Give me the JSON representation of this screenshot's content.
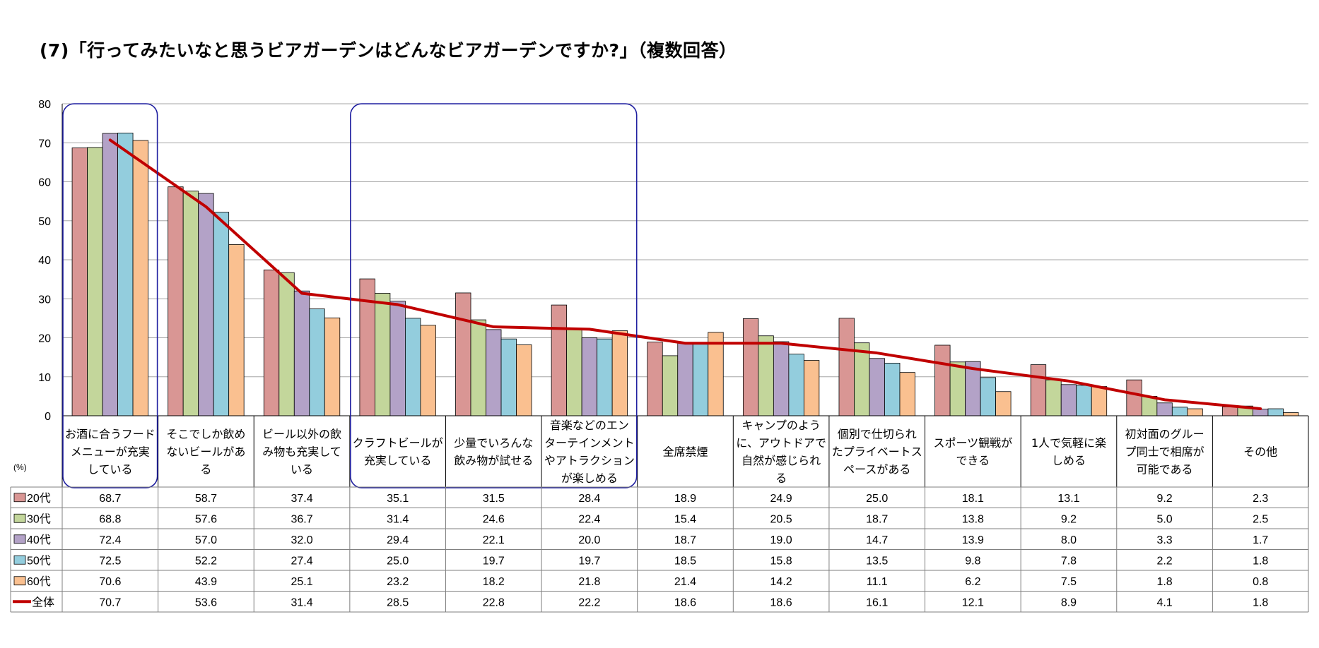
{
  "title": "(7)「行ってみたいなと思うビアガーデンはどんなビアガーデンですか?」（複数回答）",
  "unit_label": "(%)",
  "colors": {
    "20代": "#d99694",
    "30代": "#c3d69b",
    "40代": "#b3a2c7",
    "50代": "#93cddd",
    "60代": "#fac090",
    "全体": "#c00000",
    "highlight_box": "#1f1fa0",
    "grid": "#a6a6a6"
  },
  "chart_data": {
    "type": "bar",
    "title": "(7)「行ってみたいなと思うビアガーデンはどんなビアガーデンですか?」（複数回答）",
    "ylabel": "(%)",
    "ylim": [
      0,
      80
    ],
    "yticks": [
      0,
      10,
      20,
      30,
      40,
      50,
      60,
      70,
      80
    ],
    "grid": true,
    "legend": "table-left",
    "categories": [
      [
        "お酒に合うフード",
        "メニューが充実",
        "している"
      ],
      [
        "そこでしか飲め",
        "ないビールがあ",
        "る"
      ],
      [
        "ビール以外の飲",
        "み物も充実して",
        "いる"
      ],
      [
        "クラフトビールが",
        "充実している"
      ],
      [
        "少量でいろんな",
        "飲み物が試せる"
      ],
      [
        "音楽などのエン",
        "ターテインメント",
        "やアトラクション",
        "が楽しめる"
      ],
      [
        "全席禁煙"
      ],
      [
        "キャンプのよう",
        "に、アウトドアで",
        "自然が感じられ",
        "る"
      ],
      [
        "個別で仕切られ",
        "たプライベートス",
        "ペースがある"
      ],
      [
        "スポーツ観戦が",
        "できる"
      ],
      [
        "1人で気軽に楽",
        "しめる"
      ],
      [
        "初対面のグルー",
        "プ同士で相席が",
        "可能である"
      ],
      [
        "その他"
      ]
    ],
    "series": [
      {
        "name": "20代",
        "type": "bar",
        "values": [
          68.7,
          58.7,
          37.4,
          35.1,
          31.5,
          28.4,
          18.9,
          24.9,
          25.0,
          18.1,
          13.1,
          9.2,
          2.3
        ],
        "labels": [
          "68.7",
          "58.7",
          "37.4",
          "35.1",
          "31.5",
          "28.4",
          "18.9",
          "24.9",
          "25.0",
          "18.1",
          "13.1",
          "9.2",
          "2.3"
        ]
      },
      {
        "name": "30代",
        "type": "bar",
        "values": [
          68.8,
          57.6,
          36.7,
          31.4,
          24.6,
          22.4,
          15.4,
          20.5,
          18.7,
          13.8,
          9.2,
          5.0,
          2.5
        ],
        "labels": [
          "68.8",
          "57.6",
          "36.7",
          "31.4",
          "24.6",
          "22.4",
          "15.4",
          "20.5",
          "18.7",
          "13.8",
          "9.2",
          "5.0",
          "2.5"
        ]
      },
      {
        "name": "40代",
        "type": "bar",
        "values": [
          72.4,
          57.0,
          32.0,
          29.4,
          22.1,
          20.0,
          18.7,
          19.0,
          14.7,
          13.9,
          8.0,
          3.3,
          1.7
        ],
        "labels": [
          "72.4",
          "57.0",
          "32.0",
          "29.4",
          "22.1",
          "20.0",
          "18.7",
          "19.0",
          "14.7",
          "13.9",
          "8.0",
          "3.3",
          "1.7"
        ]
      },
      {
        "name": "50代",
        "type": "bar",
        "values": [
          72.5,
          52.2,
          27.4,
          25.0,
          19.7,
          19.7,
          18.5,
          15.8,
          13.5,
          9.8,
          7.8,
          2.2,
          1.8
        ],
        "labels": [
          "72.5",
          "52.2",
          "27.4",
          "25.0",
          "19.7",
          "19.7",
          "18.5",
          "15.8",
          "13.5",
          "9.8",
          "7.8",
          "2.2",
          "1.8"
        ]
      },
      {
        "name": "60代",
        "type": "bar",
        "values": [
          70.6,
          43.9,
          25.1,
          23.2,
          18.2,
          21.8,
          21.4,
          14.2,
          11.1,
          6.2,
          7.5,
          1.8,
          0.8
        ],
        "labels": [
          "70.6",
          "43.9",
          "25.1",
          "23.2",
          "18.2",
          "21.8",
          "21.4",
          "14.2",
          "11.1",
          "6.2",
          "7.5",
          "1.8",
          "0.8"
        ]
      },
      {
        "name": "全体",
        "type": "line",
        "values": [
          70.7,
          53.6,
          31.4,
          28.5,
          22.8,
          22.2,
          18.6,
          18.6,
          16.1,
          12.1,
          8.9,
          4.1,
          1.8
        ],
        "labels": [
          "70.7",
          "53.6",
          "31.4",
          "28.5",
          "22.8",
          "22.2",
          "18.6",
          "18.6",
          "16.1",
          "12.1",
          "8.9",
          "4.1",
          "1.8"
        ]
      }
    ],
    "highlight_groups": [
      [
        0,
        0
      ],
      [
        3,
        5
      ]
    ]
  }
}
